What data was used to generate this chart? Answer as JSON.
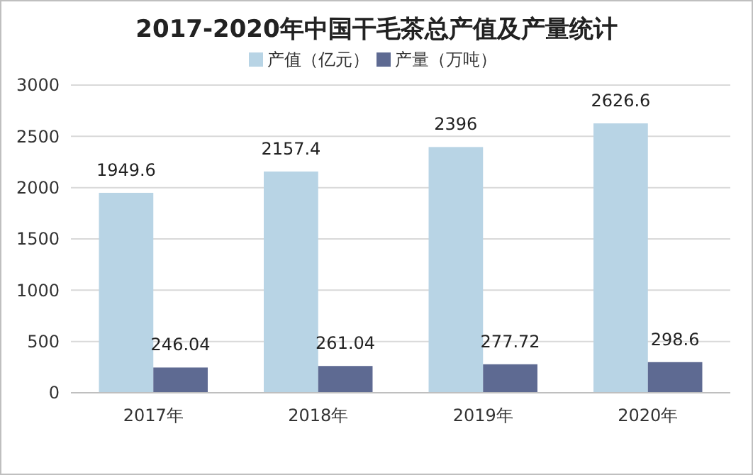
{
  "chart_data": {
    "type": "bar",
    "title": "2017-2020年中国干毛茶总产值及产量统计",
    "categories": [
      "2017年",
      "2018年",
      "2019年",
      "2020年"
    ],
    "series": [
      {
        "name": "产值（亿元）",
        "color": "#b8d4e5",
        "values": [
          1949.6,
          2157.4,
          2396,
          2626.6
        ]
      },
      {
        "name": "产量（万吨）",
        "color": "#5e6a92",
        "values": [
          246.04,
          261.04,
          277.72,
          298.6
        ]
      }
    ],
    "ylim": [
      0,
      3000
    ],
    "yticks": [
      0,
      500,
      1000,
      1500,
      2000,
      2500,
      3000
    ],
    "grid": "y",
    "legend": "top",
    "data_labels": true
  }
}
